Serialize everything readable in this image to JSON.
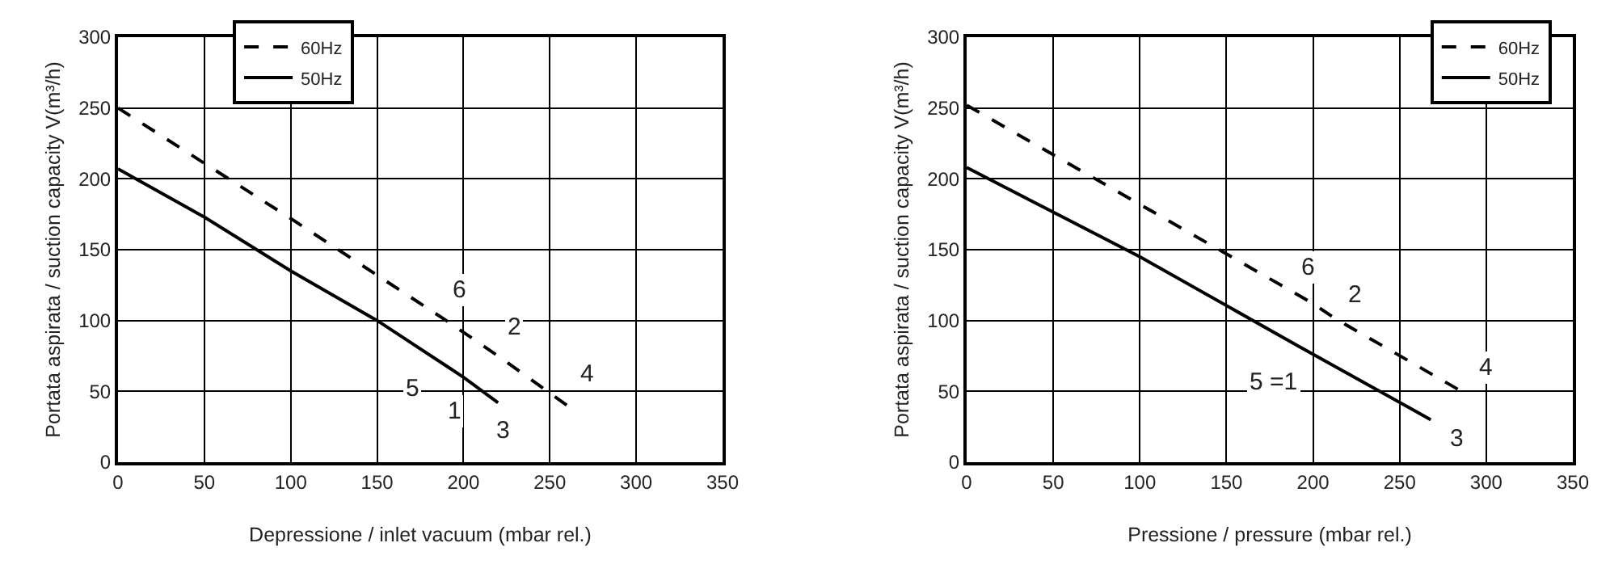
{
  "chart_data": [
    {
      "type": "line",
      "xlabel": "Depressione / inlet vacuum (mbar rel.)",
      "ylabel": "Portata aspirata / suction capacity V(m³/h)",
      "xlim": [
        0,
        350
      ],
      "xticks": [
        0,
        50,
        100,
        150,
        200,
        250,
        300,
        350
      ],
      "ylim": [
        0,
        300
      ],
      "yticks": [
        0,
        50,
        100,
        150,
        200,
        250,
        300
      ],
      "grid": true,
      "legend": "top left",
      "series": [
        {
          "name": "60Hz",
          "color": "#000000",
          "line_style": "dashed",
          "x": [
            0,
            100,
            190,
            220,
            260
          ],
          "values": [
            250,
            172,
            100,
            75,
            40
          ]
        },
        {
          "name": "50Hz",
          "color": "#000000",
          "line_style": "solid",
          "x": [
            0,
            50,
            100,
            150,
            190,
            200,
            220
          ],
          "values": [
            207,
            173,
            135,
            100,
            68,
            60,
            42
          ]
        }
      ],
      "annotations": [
        {
          "text": "6",
          "x": 197,
          "y": 122
        },
        {
          "text": "2",
          "x": 229,
          "y": 95
        },
        {
          "text": "4",
          "x": 271,
          "y": 62
        },
        {
          "text": "5",
          "x": 170,
          "y": 52
        },
        {
          "text": "1",
          "x": 195,
          "y": 36
        },
        {
          "text": "3",
          "x": 223,
          "y": 22
        }
      ]
    },
    {
      "type": "line",
      "xlabel": "Pressione / pressure (mbar rel.)",
      "ylabel": "Portata aspirata / suction capacity V(m³/h)",
      "xlim": [
        0,
        350
      ],
      "xticks": [
        0,
        50,
        100,
        150,
        200,
        250,
        300,
        350
      ],
      "ylim": [
        0,
        300
      ],
      "yticks": [
        0,
        50,
        100,
        150,
        200,
        250,
        300
      ],
      "grid": true,
      "legend": "top right",
      "series": [
        {
          "name": "60Hz",
          "color": "#000000",
          "line_style": "dashed",
          "x": [
            0,
            100,
            200,
            212,
            290
          ],
          "values": [
            252,
            182,
            112,
            102,
            47
          ]
        },
        {
          "name": "50Hz",
          "color": "#000000",
          "line_style": "solid",
          "x": [
            0,
            100,
            190,
            268
          ],
          "values": [
            208,
            145,
            83,
            30
          ]
        }
      ],
      "annotations": [
        {
          "text": "6",
          "x": 197,
          "y": 138
        },
        {
          "text": "2",
          "x": 224,
          "y": 118
        },
        {
          "text": "4",
          "x": 300,
          "y": 67
        },
        {
          "text": "5 =1",
          "x": 177,
          "y": 57
        },
        {
          "text": "3",
          "x": 283,
          "y": 17
        }
      ]
    }
  ]
}
